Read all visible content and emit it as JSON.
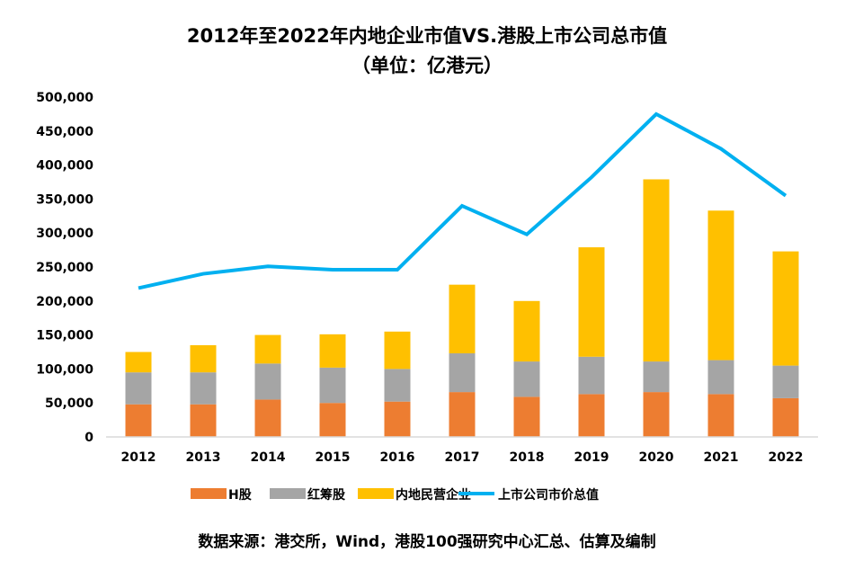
{
  "chart_data": {
    "type": "bar",
    "title": "2012年至2022年内地企业市值VS.港股上市公司总市值",
    "subtitle": "（单位：亿港元）",
    "categories": [
      "2012",
      "2013",
      "2014",
      "2015",
      "2016",
      "2017",
      "2018",
      "2019",
      "2020",
      "2021",
      "2022"
    ],
    "series": [
      {
        "name": "H股",
        "type": "stacked-bar",
        "color": "#ED7D31",
        "values": [
          48000,
          48000,
          55000,
          50000,
          52000,
          66000,
          59000,
          63000,
          66000,
          63000,
          57000
        ]
      },
      {
        "name": "红筹股",
        "type": "stacked-bar",
        "color": "#A5A5A5",
        "values": [
          47000,
          47000,
          53000,
          52000,
          48000,
          57000,
          52000,
          55000,
          45000,
          50000,
          48000
        ]
      },
      {
        "name": "内地民营企业",
        "type": "stacked-bar",
        "color": "#FFC000",
        "values": [
          30000,
          40000,
          42000,
          49000,
          55000,
          101000,
          89000,
          161000,
          268000,
          220000,
          168000
        ]
      },
      {
        "name": "上市公司市价总值",
        "type": "line",
        "color": "#00B0F0",
        "values": [
          219000,
          240000,
          251000,
          246000,
          246000,
          340000,
          298000,
          382000,
          475000,
          424000,
          355000
        ]
      }
    ],
    "ylim": [
      0,
      500000
    ],
    "yticks": [
      "0",
      "50,000",
      "100,000",
      "150,000",
      "200,000",
      "250,000",
      "300,000",
      "350,000",
      "400,000",
      "450,000",
      "500,000"
    ],
    "grid": false,
    "legend": "bottom",
    "source": "数据来源：港交所，Wind，港股100强研究中心汇总、估算及编制"
  }
}
